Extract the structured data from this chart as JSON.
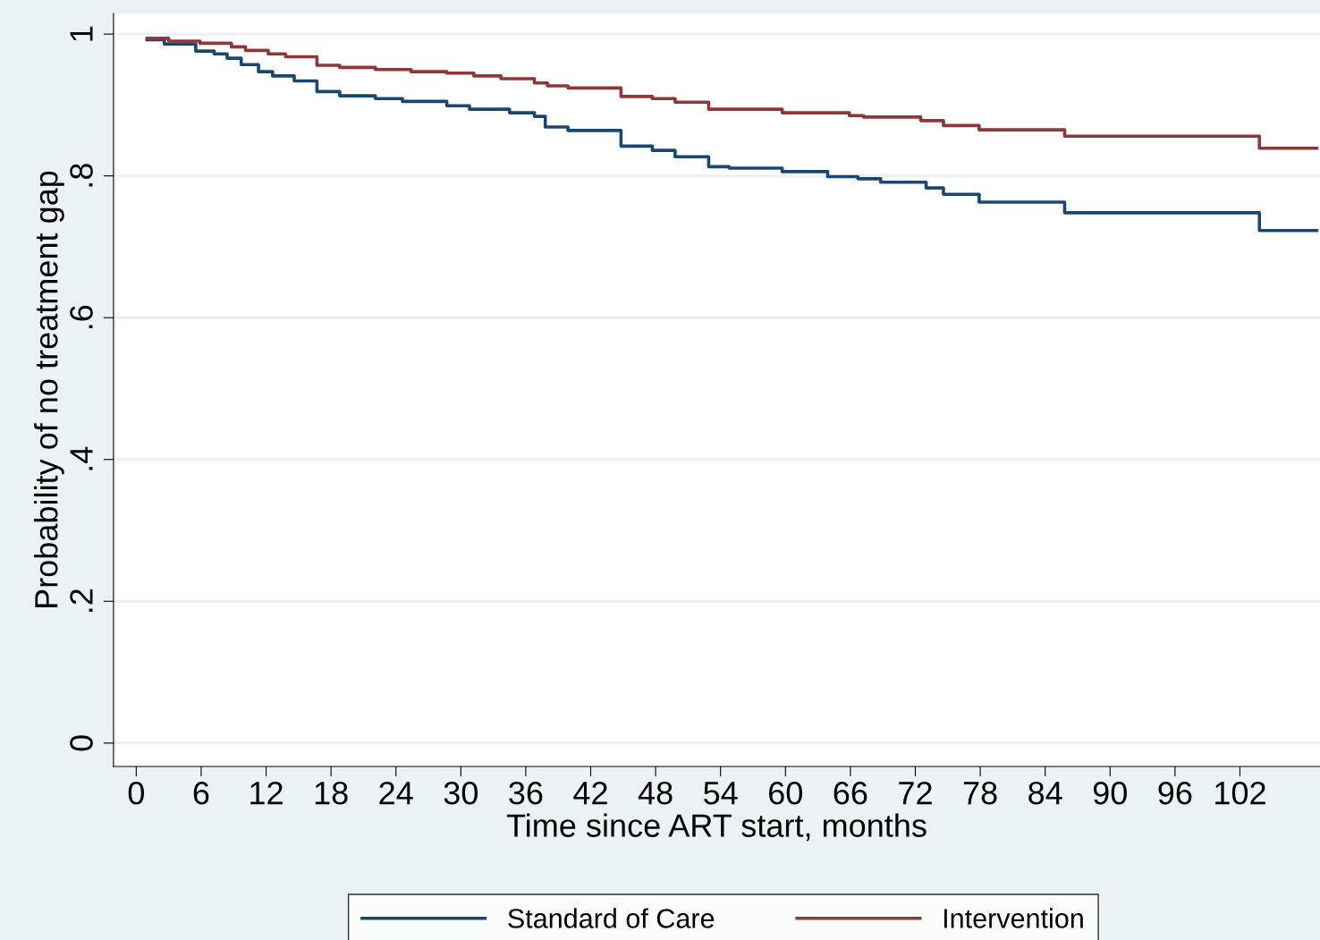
{
  "chart_data": {
    "type": "step",
    "xlabel": "Time since ART start, months",
    "ylabel": "Probability of no treatment gap",
    "xlim": [
      -2.1,
      109.4
    ],
    "ylim": [
      -0.033,
      1.029
    ],
    "xticks": [
      0,
      6,
      12,
      18,
      24,
      30,
      36,
      42,
      48,
      54,
      60,
      66,
      72,
      78,
      84,
      90,
      96,
      102
    ],
    "yticks": [
      0,
      {
        "value": 0.2,
        "label": ".2"
      },
      {
        "value": 0.4,
        "label": ".4"
      },
      {
        "value": 0.6,
        "label": ".6"
      },
      {
        "value": 0.8,
        "label": ".8"
      },
      1
    ],
    "grid": "y",
    "legend": "bottom",
    "marker": "none",
    "line_style": "solid",
    "series": [
      {
        "name": "Standard of Care",
        "color": "#1a476f",
        "x": [
          1.0,
          2.6,
          5.5,
          7.2,
          8.4,
          9.7,
          11.3,
          12.6,
          14.6,
          16.7,
          18.8,
          22.1,
          24.6,
          28.7,
          30.8,
          34.5,
          36.8,
          37.8,
          39.9,
          44.8,
          47.7,
          49.8,
          52.9,
          54.8,
          59.7,
          63.9,
          66.7,
          68.8,
          73.0,
          74.6,
          77.9,
          85.8,
          103.8,
          109.1
        ],
        "values": [
          0.992,
          0.986,
          0.976,
          0.972,
          0.966,
          0.957,
          0.947,
          0.941,
          0.934,
          0.919,
          0.913,
          0.909,
          0.905,
          0.899,
          0.894,
          0.889,
          0.884,
          0.869,
          0.864,
          0.842,
          0.836,
          0.827,
          0.813,
          0.811,
          0.806,
          0.799,
          0.796,
          0.791,
          0.783,
          0.774,
          0.763,
          0.748,
          0.723,
          0.723
        ]
      },
      {
        "name": "Intervention",
        "color": "#90353b",
        "x": [
          1.0,
          3.0,
          5.9,
          8.8,
          10.1,
          12.2,
          13.8,
          16.7,
          18.8,
          22.1,
          25.4,
          28.7,
          31.2,
          33.7,
          36.8,
          38.0,
          39.9,
          44.8,
          47.7,
          49.8,
          52.9,
          59.7,
          65.9,
          67.2,
          72.5,
          74.6,
          77.9,
          85.8,
          103.8,
          109.1
        ],
        "values": [
          0.994,
          0.99,
          0.987,
          0.982,
          0.977,
          0.972,
          0.968,
          0.956,
          0.953,
          0.95,
          0.947,
          0.945,
          0.941,
          0.937,
          0.931,
          0.927,
          0.924,
          0.912,
          0.909,
          0.904,
          0.894,
          0.889,
          0.885,
          0.883,
          0.878,
          0.871,
          0.865,
          0.856,
          0.839,
          0.839
        ]
      }
    ]
  }
}
